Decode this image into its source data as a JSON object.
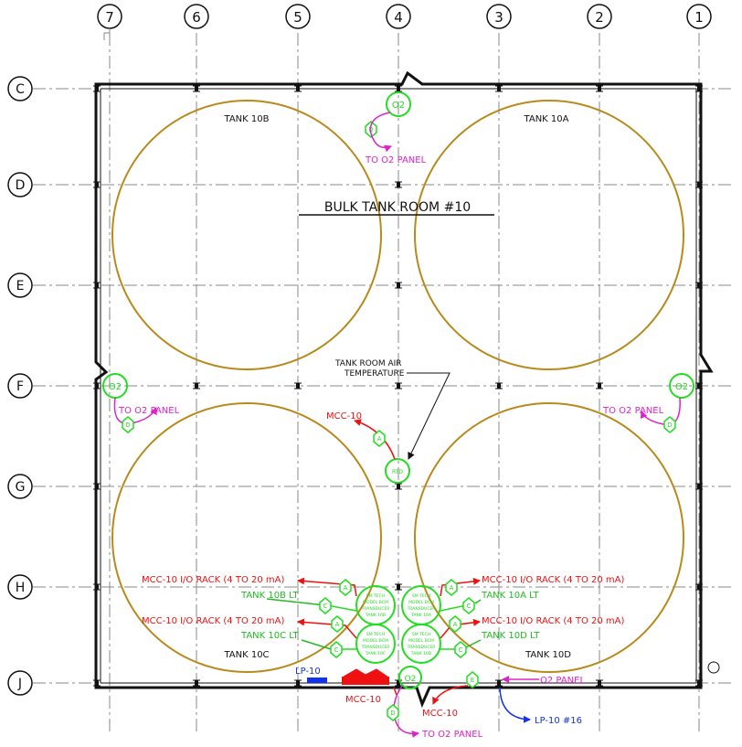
{
  "colors": {
    "wall": "#111111",
    "grid": "#8a8a8a",
    "tank": "#b88a1c",
    "device": "#22dd22",
    "signal_red": "#ee1111",
    "signal_magenta": "#dd22cc",
    "signal_blue": "#1133ee",
    "label_green": "#22bb22",
    "equipment_red": "#ee1111",
    "equipment_blue": "#1133ee"
  },
  "columns": [
    "7",
    "6",
    "5",
    "4",
    "3",
    "2",
    "1"
  ],
  "rows": [
    "C",
    "D",
    "E",
    "F",
    "G",
    "H",
    "J"
  ],
  "room": {
    "title": "BULK TANK ROOM #10"
  },
  "tanks": [
    "TANK 10B",
    "TANK 10A",
    "TANK 10C",
    "TANK 10D"
  ],
  "o2": {
    "symbol": "O2",
    "panel_label": "TO O2 PANEL",
    "short_panel_label": "O2 PANEL",
    "tag_d": "D",
    "tag_e": "E"
  },
  "temperature": {
    "label_line1": "TANK ROOM AIR",
    "label_line2": "TEMPERATURE",
    "sensor_text": "RTD",
    "mcc_label": "MCC-10",
    "tag_a": "A"
  },
  "level": {
    "rack_label": "MCC-10 I/O RACK (4 TO 20 mA)",
    "tag_a": "A",
    "tag_c": "C",
    "tank_lt": [
      "TANK 10B LT",
      "TANK 10A LT",
      "TANK 10C LT",
      "TANK 10D LT"
    ],
    "transmitter_lines": [
      "SM TECH",
      "MODEL BCM",
      "TRANSDUCER"
    ],
    "transmitter_tanks": [
      "TANK 10B",
      "TANK 10A",
      "TANK 10C",
      "TANK 10D"
    ]
  },
  "equipment": {
    "lp": "LP-10",
    "lp_circuit": "LP-10 #16",
    "mcc": "MCC-10",
    "mcc2": "MCC-10"
  }
}
